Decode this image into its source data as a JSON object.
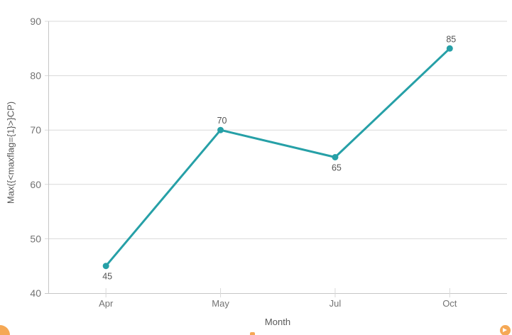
{
  "chart_data": {
    "type": "line",
    "title": "",
    "categories": [
      "Apr",
      "May",
      "Jul",
      "Oct"
    ],
    "values": [
      45,
      70,
      65,
      85
    ],
    "xlabel": "Month",
    "ylabel": "Max({<maxflag={1}>}CP)",
    "ylim": [
      40,
      90
    ],
    "yticks": [
      90,
      80,
      70,
      60,
      50,
      40
    ],
    "grid": "horizontal",
    "legend": "none",
    "label_positions": [
      "below",
      "above",
      "below",
      "above"
    ]
  },
  "colors": {
    "line": "#26a0a7",
    "grid": "#d9d9d9",
    "axis": "#c6c6c6",
    "tick_text": "#737373",
    "label_text": "#545454",
    "background": "#ffffff",
    "orange_accent": "#f5a855"
  },
  "decorations": {
    "bottom_left": "orange-quarter-circle",
    "bottom_center": "orange-dash",
    "bottom_right": "orange-circle-with-arrow"
  }
}
